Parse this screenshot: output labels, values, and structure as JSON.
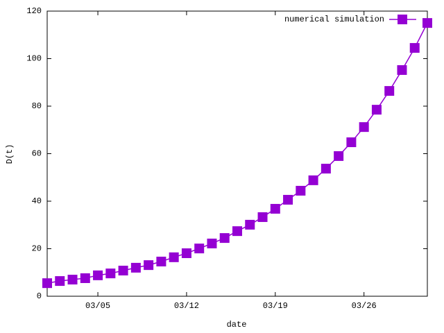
{
  "chart_data": {
    "type": "line",
    "xlabel": "date",
    "ylabel": "D(t)",
    "categories": [
      null,
      null,
      null,
      null,
      "03/05",
      null,
      null,
      null,
      null,
      null,
      null,
      "03/12",
      null,
      null,
      null,
      null,
      null,
      null,
      "03/19",
      null,
      null,
      null,
      null,
      null,
      null,
      "03/26",
      null,
      null,
      null,
      null,
      null
    ],
    "series": [
      {
        "name": "numerical simulation",
        "color": "#9400d3",
        "values": [
          5.5,
          6.4,
          7.0,
          7.6,
          8.8,
          9.6,
          10.8,
          12.0,
          13.1,
          14.6,
          16.4,
          18.1,
          20.1,
          22.2,
          24.5,
          27.4,
          30.1,
          33.3,
          36.8,
          40.6,
          44.4,
          48.8,
          53.7,
          59.0,
          64.8,
          71.2,
          78.5,
          86.4,
          95.2,
          104.5,
          115.0
        ]
      }
    ],
    "ylim": [
      0,
      120
    ],
    "yticks": [
      0,
      20,
      40,
      60,
      80,
      100,
      120
    ],
    "grid": false,
    "legend": "top-right"
  }
}
